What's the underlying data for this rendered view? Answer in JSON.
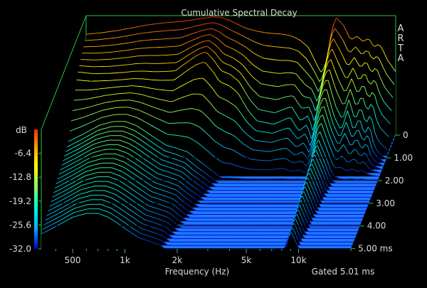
{
  "chart_data": {
    "type": "area",
    "subtype": "waterfall-3d",
    "title": "Cumulative Spectral Decay",
    "watermark": "ARTA",
    "xlabel": "Frequency (Hz)",
    "x_scale": "log",
    "x_ticks": [
      "500",
      "1k",
      "2k",
      "5k",
      "10k"
    ],
    "x_tick_values": [
      500,
      1000,
      2000,
      5000,
      10000
    ],
    "xlim": [
      330,
      20000
    ],
    "ylabel": "dB",
    "y_ticks": [
      "-6.4",
      "-12.8",
      "-19.2",
      "-25.6",
      "-32.0"
    ],
    "ylim": [
      -32.0,
      0
    ],
    "z_label": "Gated 5.01 ms",
    "z_ticks": [
      "0",
      "1.00",
      "2.00",
      "3.00",
      "4.00",
      "5.00 ms"
    ],
    "z_tick_values": [
      0,
      1,
      2,
      3,
      4,
      5
    ],
    "zlim_ms": [
      0,
      5.01
    ],
    "grid": true,
    "colormap": [
      "#0000c8",
      "#00b4ff",
      "#00ffd2",
      "#96ff50",
      "#ffff00",
      "#ffa000",
      "#ff2800"
    ],
    "floor_color": "#1e78ff",
    "slice_count": 34,
    "series": [
      {
        "time_ms": 0,
        "x": [
          330,
          400,
          500,
          600,
          700,
          800,
          900,
          1000,
          1200,
          1400,
          1600,
          1800,
          2000,
          2200,
          2500,
          2800,
          3200,
          3600,
          4000,
          4500,
          5000,
          5600,
          6300,
          7000,
          7500,
          8000,
          8500,
          9000,
          10000,
          11000,
          12000,
          13000,
          14000,
          15000,
          16000,
          17000,
          18000,
          20000
        ],
        "values": [
          -5.0,
          -4.6,
          -4.0,
          -3.3,
          -2.7,
          -2.3,
          -2.0,
          -1.8,
          -1.5,
          -1.0,
          -0.6,
          -0.3,
          -0.5,
          -1.2,
          -2.5,
          -3.5,
          -4.2,
          -4.6,
          -4.8,
          -5.0,
          -5.4,
          -6.5,
          -8.5,
          -13.0,
          -15.5,
          -12.0,
          -5.0,
          -0.4,
          -2.5,
          -6.5,
          -5.5,
          -7.0,
          -6.0,
          -8.5,
          -7.5,
          -9.5,
          -12.0,
          -15.0
        ]
      },
      {
        "time_ms": 1.0,
        "x": [
          330,
          400,
          500,
          600,
          700,
          800,
          900,
          1000,
          1200,
          1400,
          1600,
          1800,
          2000,
          2200,
          2500,
          2800,
          3200,
          3600,
          4000,
          4500,
          5000,
          5600,
          6300,
          7000,
          7500,
          8000,
          8500,
          9000,
          10000,
          11000,
          12000,
          13000,
          14000,
          15000,
          16000,
          17000,
          18000,
          20000
        ],
        "values": [
          -10.0,
          -10.5,
          -10.5,
          -10.3,
          -10.0,
          -10.0,
          -10.2,
          -10.2,
          -10.0,
          -7.5,
          -5.5,
          -4.5,
          -7.0,
          -10.0,
          -11.0,
          -13.0,
          -18.0,
          -21.0,
          -21.5,
          -22.0,
          -21.0,
          -20.0,
          -24.0,
          -22.0,
          -27.0,
          -18.0,
          -14.0,
          -12.0,
          -20.0,
          -24.0,
          -18.0,
          -24.0,
          -20.0,
          -25.0,
          -22.0,
          -28.0,
          -30.0,
          -32.0
        ]
      },
      {
        "time_ms": 2.0,
        "x": [
          330,
          400,
          500,
          600,
          700,
          800,
          900,
          1000,
          1200,
          1400,
          1600,
          1800,
          2000,
          2200,
          2500,
          2800,
          3200,
          3600,
          4000,
          4500,
          5000,
          5600,
          6300,
          7000,
          7500,
          8000,
          8500,
          9000,
          10000,
          11000,
          12000,
          13000,
          14000,
          15000,
          16000,
          17000,
          18000,
          20000
        ],
        "values": [
          -22.0,
          -20.0,
          -17.5,
          -16.5,
          -16.5,
          -17.5,
          -19.0,
          -20.5,
          -23.0,
          -24.0,
          -25.0,
          -27.0,
          -28.5,
          -30.0,
          -32.0,
          -32.0,
          -32.0,
          -32.0,
          -32.0,
          -32.0,
          -32.0,
          -32.0,
          -32.0,
          -32.0,
          -32.0,
          -32.0,
          -25.0,
          -21.0,
          -26.0,
          -31.0,
          -32.0,
          -32.0,
          -32.0,
          -32.0,
          -32.0,
          -32.0,
          -32.0,
          -32.0
        ]
      }
    ]
  }
}
